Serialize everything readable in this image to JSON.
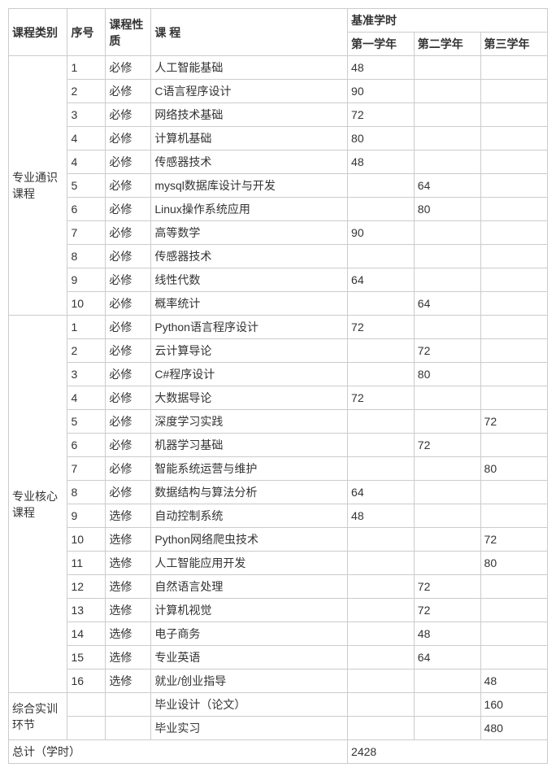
{
  "headers": {
    "category": "课程类别",
    "seq": "序号",
    "nature": "课程性质",
    "course": "课 程",
    "base_hours": "基准学时",
    "year1": "第一学年",
    "year2": "第二学年",
    "year3": "第三学年"
  },
  "sections": [
    {
      "category": "专业通识课程",
      "rows": [
        {
          "seq": "1",
          "nature": "必修",
          "course": "人工智能基础",
          "y1": "48",
          "y2": "",
          "y3": ""
        },
        {
          "seq": "2",
          "nature": "必修",
          "course": "C语言程序设计",
          "y1": "90",
          "y2": "",
          "y3": ""
        },
        {
          "seq": "3",
          "nature": "必修",
          "course": "网络技术基础",
          "y1": "72",
          "y2": "",
          "y3": ""
        },
        {
          "seq": "4",
          "nature": "必修",
          "course": "计算机基础",
          "y1": "80",
          "y2": "",
          "y3": ""
        },
        {
          "seq": "4",
          "nature": "必修",
          "course": "传感器技术",
          "y1": "48",
          "y2": "",
          "y3": ""
        },
        {
          "seq": "5",
          "nature": "必修",
          "course": "mysql数据库设计与开发",
          "y1": "",
          "y2": "64",
          "y3": ""
        },
        {
          "seq": "6",
          "nature": "必修",
          "course": "Linux操作系统应用",
          "y1": "",
          "y2": "80",
          "y3": ""
        },
        {
          "seq": "7",
          "nature": "必修",
          "course": "高等数学",
          "y1": "90",
          "y2": "",
          "y3": ""
        },
        {
          "seq": "8",
          "nature": "必修",
          "course": "传感器技术",
          "y1": "",
          "y2": "",
          "y3": ""
        },
        {
          "seq": "9",
          "nature": "必修",
          "course": "线性代数",
          "y1": "64",
          "y2": "",
          "y3": ""
        },
        {
          "seq": "10",
          "nature": "必修",
          "course": "概率统计",
          "y1": "",
          "y2": "64",
          "y3": ""
        }
      ]
    },
    {
      "category": "专业核心课程",
      "rows": [
        {
          "seq": "1",
          "nature": "必修",
          "course": "Python语言程序设计",
          "y1": "72",
          "y2": "",
          "y3": ""
        },
        {
          "seq": "2",
          "nature": "必修",
          "course": "云计算导论",
          "y1": "",
          "y2": "72",
          "y3": ""
        },
        {
          "seq": "3",
          "nature": "必修",
          "course": "C#程序设计",
          "y1": "",
          "y2": "80",
          "y3": ""
        },
        {
          "seq": "4",
          "nature": "必修",
          "course": "大数据导论",
          "y1": "72",
          "y2": "",
          "y3": ""
        },
        {
          "seq": "5",
          "nature": "必修",
          "course": "深度学习实践",
          "y1": "",
          "y2": "",
          "y3": "72"
        },
        {
          "seq": "6",
          "nature": "必修",
          "course": "机器学习基础",
          "y1": "",
          "y2": "72",
          "y3": ""
        },
        {
          "seq": "7",
          "nature": "必修",
          "course": "智能系统运营与维护",
          "y1": "",
          "y2": "",
          "y3": "80"
        },
        {
          "seq": "8",
          "nature": "必修",
          "course": "数据结构与算法分析",
          "y1": "64",
          "y2": "",
          "y3": ""
        },
        {
          "seq": "9",
          "nature": "选修",
          "course": "自动控制系统",
          "y1": "48",
          "y2": "",
          "y3": ""
        },
        {
          "seq": "10",
          "nature": "选修",
          "course": "Python网络爬虫技术",
          "y1": "",
          "y2": "",
          "y3": "72"
        },
        {
          "seq": "11",
          "nature": "选修",
          "course": "人工智能应用开发",
          "y1": "",
          "y2": "",
          "y3": "80"
        },
        {
          "seq": "12",
          "nature": "选修",
          "course": "自然语言处理",
          "y1": "",
          "y2": "72",
          "y3": ""
        },
        {
          "seq": "13",
          "nature": "选修",
          "course": "计算机视觉",
          "y1": "",
          "y2": "72",
          "y3": ""
        },
        {
          "seq": "14",
          "nature": "选修",
          "course": "电子商务",
          "y1": "",
          "y2": "48",
          "y3": ""
        },
        {
          "seq": "15",
          "nature": "选修",
          "course": "专业英语",
          "y1": "",
          "y2": "64",
          "y3": ""
        },
        {
          "seq": "16",
          "nature": "选修",
          "course": "就业/创业指导",
          "y1": "",
          "y2": "",
          "y3": "48"
        }
      ]
    },
    {
      "category": "综合实训环节",
      "rows": [
        {
          "seq": "",
          "nature": "",
          "course": "毕业设计（论文）",
          "y1": "",
          "y2": "",
          "y3": "160"
        },
        {
          "seq": "",
          "nature": "",
          "course": "毕业实习",
          "y1": "",
          "y2": "",
          "y3": "480"
        }
      ]
    }
  ],
  "total": {
    "label": "总计（学时）",
    "value": "2428"
  },
  "styles": {
    "border_color": "#cccccc",
    "text_color": "#333333",
    "background_color": "#ffffff",
    "font_size": 14
  }
}
